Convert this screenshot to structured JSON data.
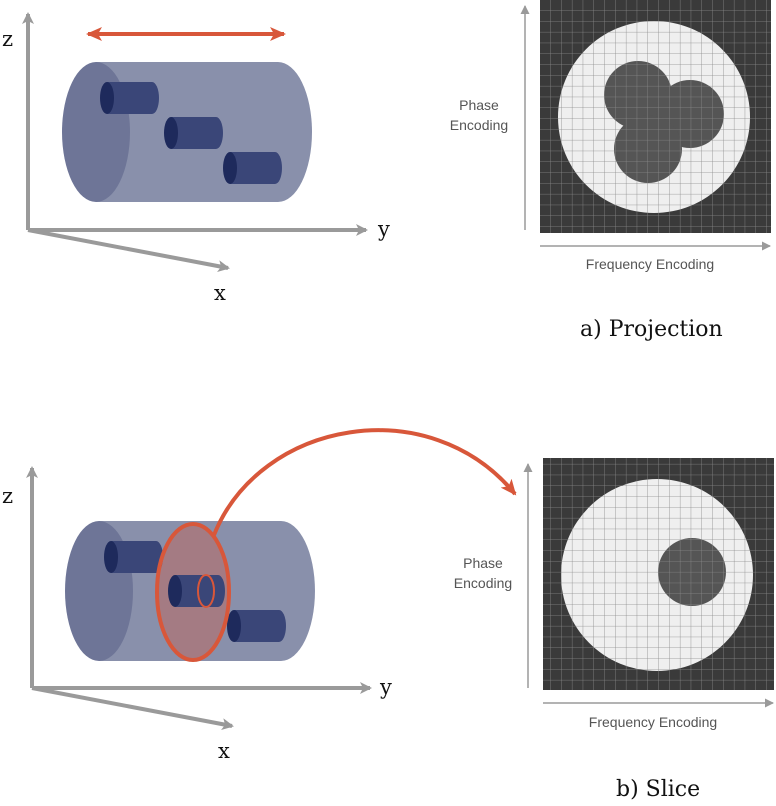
{
  "colors": {
    "axis": "#9a9a9a",
    "accent": "#d8573a",
    "cylinder_body": "#8990ab",
    "cylinder_cap": "#6e7597",
    "inner_tube": "#3a4678",
    "inner_cap": "#1e2a5c",
    "grid_dark": "#3a3a3a",
    "grid_line": "#8a8a8a",
    "phantom_light": "#efefef",
    "phantom_dark": "#555555"
  },
  "panel_a": {
    "axis_z": "z",
    "axis_y": "y",
    "axis_x": "x",
    "phase_line1": "Phase",
    "phase_line2": "Encoding",
    "frequency": "Frequency Encoding",
    "caption": "a)  Projection"
  },
  "panel_b": {
    "axis_z": "z",
    "axis_y": "y",
    "axis_x": "x",
    "phase_line1": "Phase",
    "phase_line2": "Encoding",
    "frequency": "Frequency Encoding",
    "caption": "b)  Slice"
  }
}
